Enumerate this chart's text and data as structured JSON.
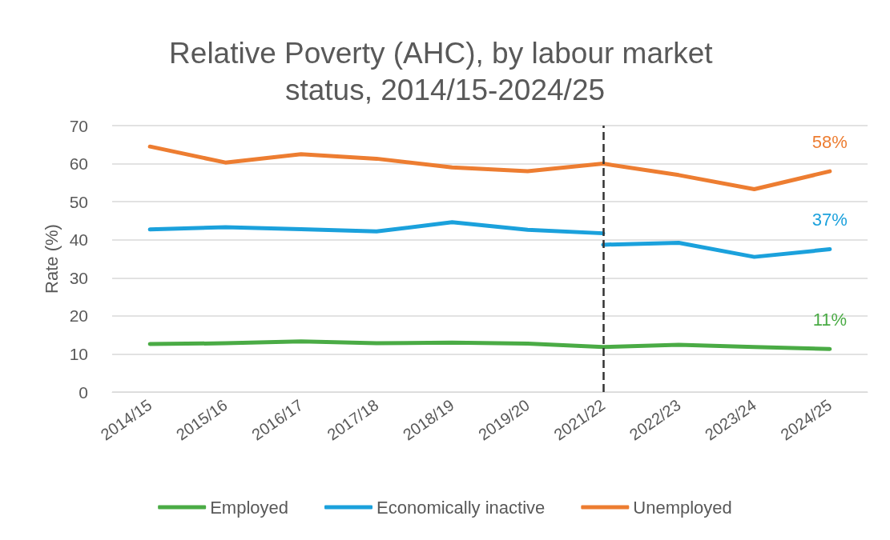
{
  "chart_data": {
    "type": "line",
    "title": "Relative Poverty (AHC), by labour market status, 2014/15-2024/25",
    "ylabel": "Rate (%)",
    "categories": [
      "2014/15",
      "2015/16",
      "2016/17",
      "2017/18",
      "2018/19",
      "2019/20",
      "2021/22",
      "2022/23",
      "2023/24",
      "2024/25"
    ],
    "series": [
      {
        "name": "Employed",
        "color": "#4aab45",
        "values": [
          12.6,
          12.8,
          13.3,
          12.8,
          13.0,
          12.7,
          11.8,
          12.4,
          11.8,
          11.3
        ],
        "value_labels": [
          null,
          null,
          null,
          null,
          null,
          null,
          null,
          null,
          null,
          "11%"
        ]
      },
      {
        "name": "Economically inactive",
        "color": "#1ba1dc",
        "values": [
          42.7,
          43.3,
          42.8,
          42.2,
          44.6,
          42.6,
          41.7,
          null,
          null,
          null
        ]
      },
      {
        "name": "Unemployed",
        "color": "#ed7d31",
        "values": [
          64.5,
          60.3,
          62.5,
          61.3,
          59.0,
          58.0,
          60.0,
          57.0,
          53.3,
          58.0
        ],
        "value_labels": [
          null,
          null,
          null,
          null,
          null,
          null,
          null,
          null,
          null,
          "58%"
        ]
      },
      {
        "color": "#1ba1dc",
        "values": [
          null,
          null,
          null,
          null,
          null,
          null,
          38.7,
          39.2,
          35.5,
          37.5
        ],
        "value_labels": [
          null,
          null,
          null,
          null,
          null,
          null,
          null,
          null,
          null,
          "37%"
        ]
      }
    ],
    "ylim": [
      0,
      70
    ],
    "yticks": [
      0,
      10,
      20,
      30,
      40,
      50,
      60,
      70
    ],
    "grid": "y",
    "legend": "bottom",
    "marker": "none",
    "line_style": "solid",
    "ref_lines": [
      {
        "axis": "x",
        "value": "2021/22",
        "color": "#333333",
        "line_style": "dashed"
      }
    ]
  }
}
